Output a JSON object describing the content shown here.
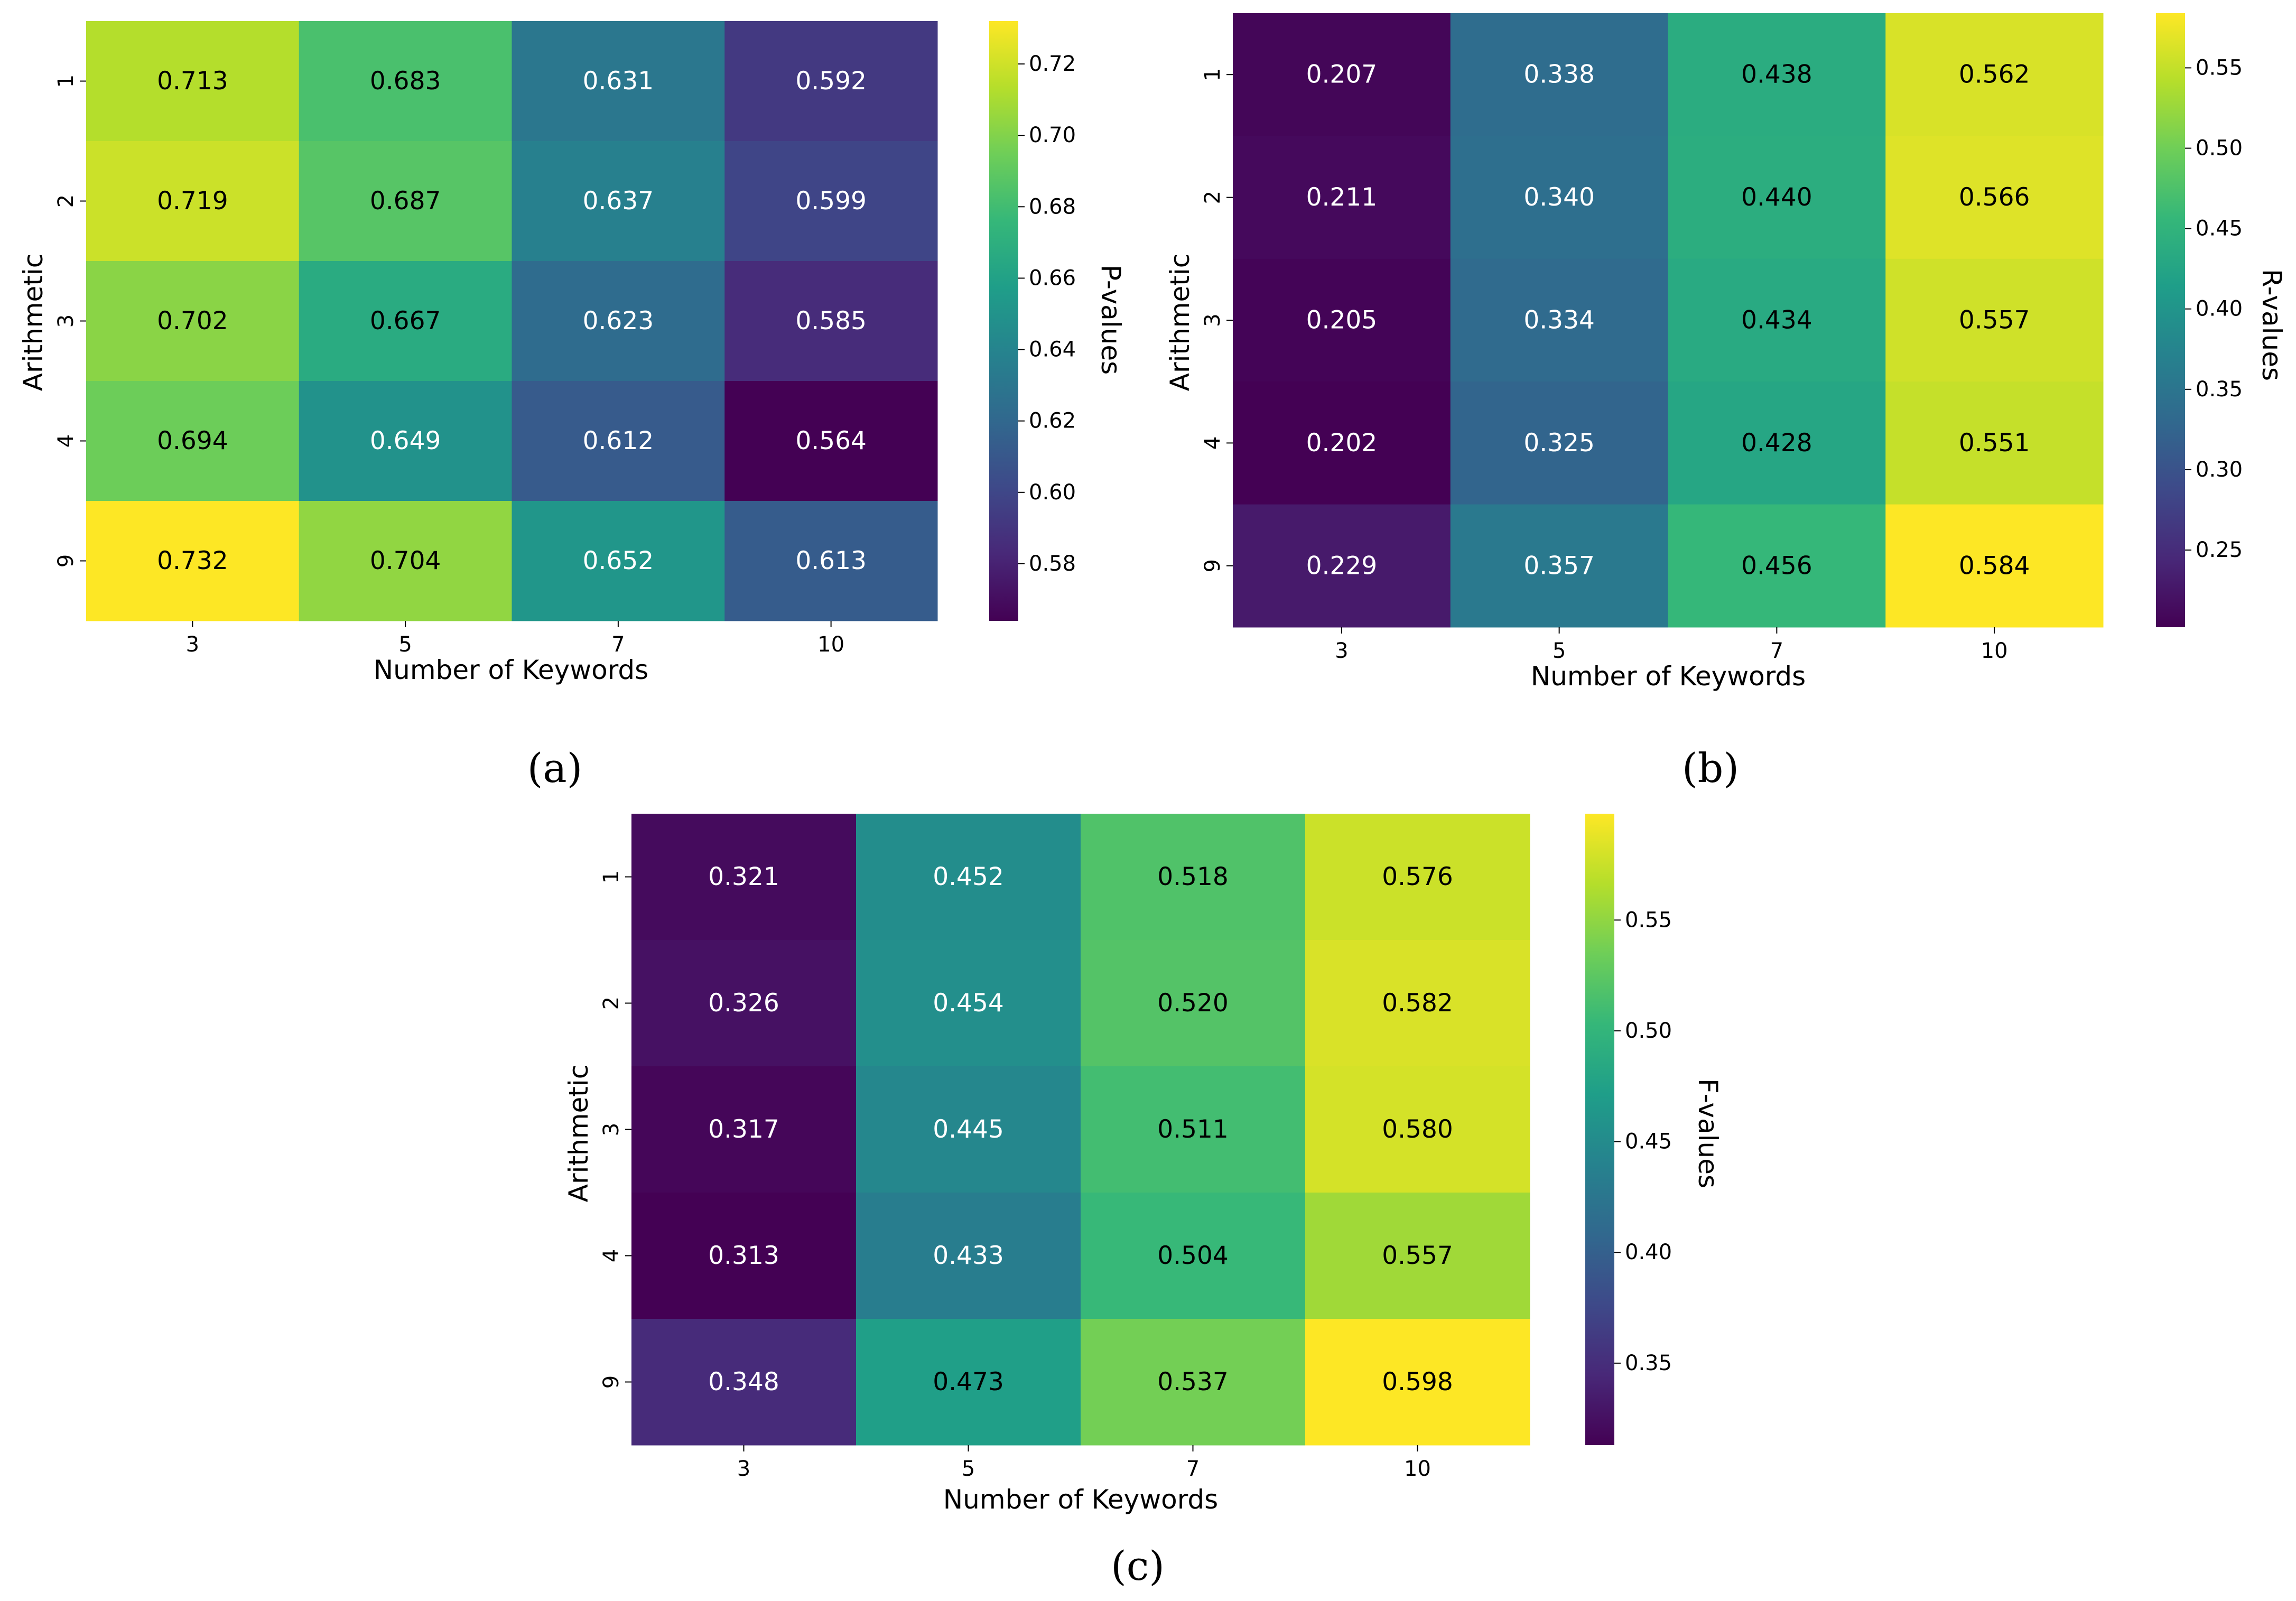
{
  "chart_data": [
    {
      "type": "heatmap",
      "panel_label": "a",
      "xlabel": "Number of Keywords",
      "ylabel": "Arithmetic",
      "x_categories": [
        "3",
        "5",
        "7",
        "10"
      ],
      "y_categories": [
        "1",
        "2",
        "3",
        "4",
        "9"
      ],
      "values": [
        [
          0.713,
          0.683,
          0.631,
          0.592
        ],
        [
          0.719,
          0.687,
          0.637,
          0.599
        ],
        [
          0.702,
          0.667,
          0.623,
          0.585
        ],
        [
          0.694,
          0.649,
          0.612,
          0.564
        ],
        [
          0.732,
          0.704,
          0.652,
          0.613
        ]
      ],
      "colorbar": {
        "label": "P-values",
        "colormap": "viridis",
        "min": 0.564,
        "max": 0.732,
        "ticks": [
          0.58,
          0.6,
          0.62,
          0.64,
          0.66,
          0.68,
          0.7,
          0.72
        ],
        "tick_labels": [
          "0.58",
          "0.60",
          "0.62",
          "0.64",
          "0.66",
          "0.68",
          "0.70",
          "0.72"
        ]
      }
    },
    {
      "type": "heatmap",
      "panel_label": "b",
      "xlabel": "Number of Keywords",
      "ylabel": "Arithmetic",
      "x_categories": [
        "3",
        "5",
        "7",
        "10"
      ],
      "y_categories": [
        "1",
        "2",
        "3",
        "4",
        "9"
      ],
      "values": [
        [
          0.207,
          0.338,
          0.438,
          0.562
        ],
        [
          0.211,
          0.34,
          0.44,
          0.566
        ],
        [
          0.205,
          0.334,
          0.434,
          0.557
        ],
        [
          0.202,
          0.325,
          0.428,
          0.551
        ],
        [
          0.229,
          0.357,
          0.456,
          0.584
        ]
      ],
      "colorbar": {
        "label": "R-values",
        "colormap": "viridis",
        "min": 0.202,
        "max": 0.584,
        "ticks": [
          0.25,
          0.3,
          0.35,
          0.4,
          0.45,
          0.5,
          0.55
        ],
        "tick_labels": [
          "0.25",
          "0.30",
          "0.35",
          "0.40",
          "0.45",
          "0.50",
          "0.55"
        ]
      }
    },
    {
      "type": "heatmap",
      "panel_label": "c",
      "xlabel": "Number of Keywords",
      "ylabel": "Arithmetic",
      "x_categories": [
        "3",
        "5",
        "7",
        "10"
      ],
      "y_categories": [
        "1",
        "2",
        "3",
        "4",
        "9"
      ],
      "values": [
        [
          0.321,
          0.452,
          0.518,
          0.576
        ],
        [
          0.326,
          0.454,
          0.52,
          0.582
        ],
        [
          0.317,
          0.445,
          0.511,
          0.58
        ],
        [
          0.313,
          0.433,
          0.504,
          0.557
        ],
        [
          0.348,
          0.473,
          0.537,
          0.598
        ]
      ],
      "colorbar": {
        "label": "F-values",
        "colormap": "viridis",
        "min": 0.313,
        "max": 0.598,
        "ticks": [
          0.35,
          0.4,
          0.45,
          0.5,
          0.55
        ],
        "tick_labels": [
          "0.35",
          "0.40",
          "0.45",
          "0.50",
          "0.55"
        ]
      }
    }
  ],
  "captions": [
    "(a)",
    "(b)",
    "(c)"
  ],
  "colors": {
    "viridis": [
      "#440154",
      "#482878",
      "#3e4989",
      "#31688e",
      "#26828e",
      "#1f9e89",
      "#35b779",
      "#6ece58",
      "#b5de2b",
      "#fde725"
    ],
    "text_dark": "#000000",
    "text_light": "#ffffff"
  }
}
